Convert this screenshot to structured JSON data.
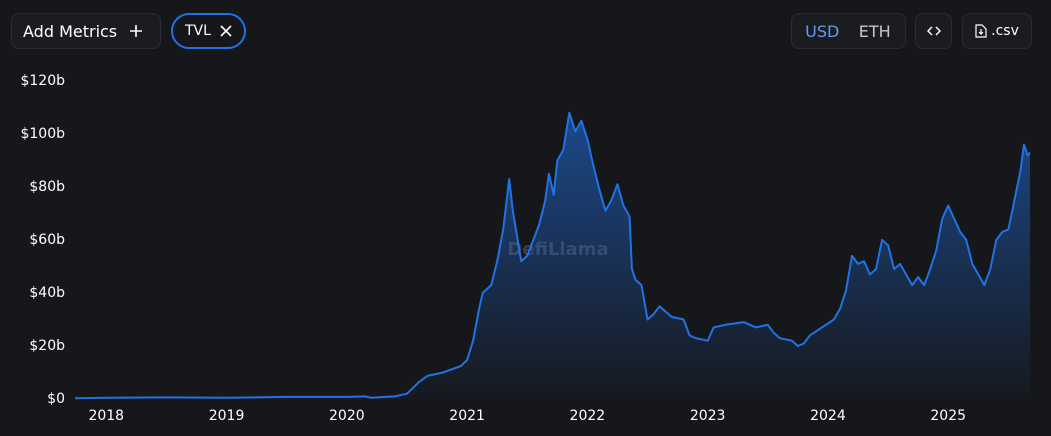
{
  "controls": {
    "add_metrics": "Add Metrics",
    "currencies": [
      "USD",
      "ETH"
    ],
    "csv": ".csv"
  },
  "watermark": "DefiLlama",
  "chart_data": {
    "type": "area",
    "x": [
      2017.74,
      2018.0,
      2018.5,
      2019.0,
      2019.5,
      2020.0,
      2020.15,
      2020.2,
      2020.4,
      2020.5,
      2020.6,
      2020.67,
      2020.8,
      2020.95,
      2021.0,
      2021.05,
      2021.1,
      2021.13,
      2021.2,
      2021.25,
      2021.3,
      2021.35,
      2021.38,
      2021.45,
      2021.5,
      2021.55,
      2021.6,
      2021.65,
      2021.68,
      2021.72,
      2021.75,
      2021.8,
      2021.85,
      2021.9,
      2021.95,
      2022.0,
      2022.05,
      2022.1,
      2022.15,
      2022.2,
      2022.25,
      2022.3,
      2022.35,
      2022.37,
      2022.4,
      2022.45,
      2022.5,
      2022.55,
      2022.6,
      2022.65,
      2022.7,
      2022.8,
      2022.85,
      2022.9,
      2023.0,
      2023.05,
      2023.15,
      2023.3,
      2023.4,
      2023.5,
      2023.55,
      2023.6,
      2023.7,
      2023.75,
      2023.8,
      2023.85,
      2023.95,
      2024.05,
      2024.1,
      2024.15,
      2024.2,
      2024.25,
      2024.3,
      2024.35,
      2024.4,
      2024.45,
      2024.5,
      2024.55,
      2024.6,
      2024.7,
      2024.75,
      2024.8,
      2024.85,
      2024.9,
      2024.95,
      2025.0,
      2025.05,
      2025.1,
      2025.15,
      2025.2,
      2025.25,
      2025.3,
      2025.35,
      2025.4,
      2025.45,
      2025.5,
      2025.55,
      2025.6,
      2025.63,
      2025.66,
      2025.68
    ],
    "series": [
      {
        "name": "TVL",
        "color": "#2172e5",
        "values": [
          0.3,
          0.5,
          0.6,
          0.5,
          0.8,
          0.8,
          1.0,
          0.5,
          1.0,
          2.0,
          6.4,
          8.7,
          10,
          12.5,
          14.7,
          22,
          34,
          40,
          43,
          52,
          64,
          83,
          71,
          52,
          54,
          60,
          66,
          75,
          85,
          77,
          90,
          94,
          108,
          101,
          105,
          98,
          88,
          79,
          71,
          75,
          81,
          73,
          69,
          49,
          45,
          43,
          30,
          32,
          35,
          33,
          31,
          30,
          24,
          23,
          22,
          27,
          28,
          29,
          27,
          28,
          25,
          23,
          22,
          20,
          21,
          24,
          27,
          30,
          34,
          41,
          54,
          51,
          52,
          47,
          49,
          60,
          58,
          49,
          51,
          43,
          46,
          43,
          49,
          56,
          68,
          73,
          68,
          63,
          60,
          51,
          47,
          43,
          49,
          60,
          63,
          64,
          75,
          86,
          96,
          92,
          93
        ]
      }
    ],
    "xlim": [
      2017.74,
      2025.68
    ],
    "xticks": [
      2018,
      2019,
      2020,
      2021,
      2022,
      2023,
      2024,
      2025
    ],
    "ylim": [
      0,
      120
    ],
    "yticks": [
      {
        "value": 0,
        "label": "$0"
      },
      {
        "value": 20,
        "label": "$20b"
      },
      {
        "value": 40,
        "label": "$40b"
      },
      {
        "value": 60,
        "label": "$60b"
      },
      {
        "value": 80,
        "label": "$80b"
      },
      {
        "value": 100,
        "label": "$100b"
      },
      {
        "value": 120,
        "label": "$120b"
      }
    ],
    "grid": false
  }
}
